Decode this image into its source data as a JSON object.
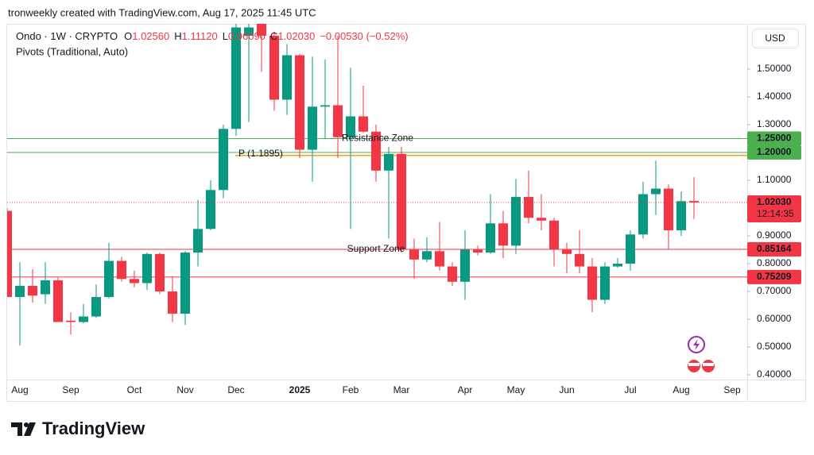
{
  "header": {
    "title": "tronweekly created with TradingView.com, Aug 17, 2025 11:45 UTC"
  },
  "footer": {
    "brand": "TradingView"
  },
  "chart_data": {
    "type": "candlestick",
    "legend": {
      "symbol": "Ondo · 1W · CRYPTO",
      "fields": [
        {
          "key": "O",
          "value": "1.02560"
        },
        {
          "key": "H",
          "value": "1.11120"
        },
        {
          "key": "L",
          "value": "0.96090"
        },
        {
          "key": "C",
          "value": "1.02030"
        }
      ],
      "change": "−0.00530 (−0.52%)",
      "indicator": "Pivots (Traditional, Auto)"
    },
    "currency": "USD",
    "categories": [
      null,
      "Aug",
      null,
      null,
      null,
      "Sep",
      null,
      null,
      null,
      null,
      "Oct",
      null,
      null,
      null,
      "Nov",
      null,
      null,
      null,
      "Dec",
      null,
      null,
      null,
      null,
      "2025",
      null,
      null,
      null,
      "Feb",
      null,
      null,
      null,
      "Mar",
      null,
      null,
      null,
      null,
      "Apr",
      null,
      null,
      null,
      "May",
      null,
      null,
      null,
      "Jun",
      null,
      null,
      null,
      null,
      "Jul",
      null,
      null,
      null,
      "Aug",
      null,
      null,
      null,
      "Sep"
    ],
    "open": [
      0.99,
      0.68,
      0.72,
      0.69,
      0.74,
      0.595,
      0.59,
      0.61,
      0.68,
      0.81,
      0.745,
      0.73,
      0.835,
      0.7,
      0.62,
      0.84,
      0.925,
      1.065,
      1.285,
      1.62,
      1.68,
      1.62,
      1.39,
      1.55,
      1.21,
      1.365,
      1.37,
      1.255,
      1.33,
      1.275,
      1.135,
      1.195,
      0.85,
      0.815,
      0.845,
      0.79,
      0.735,
      0.85,
      0.84,
      0.945,
      0.865,
      1.04,
      0.965,
      0.955,
      0.85,
      0.835,
      0.79,
      0.67,
      0.79,
      0.8,
      0.905,
      1.05,
      1.07,
      0.92,
      1.0256,
      null,
      null,
      null
    ],
    "high": [
      1.0,
      0.805,
      0.78,
      0.805,
      0.75,
      0.625,
      0.655,
      0.725,
      0.875,
      0.825,
      0.775,
      0.84,
      0.84,
      0.755,
      0.845,
      1.03,
      1.1,
      1.3,
      1.7,
      1.7,
      1.72,
      1.635,
      1.59,
      1.555,
      1.545,
      1.535,
      1.62,
      1.505,
      1.44,
      1.3,
      1.22,
      1.22,
      0.89,
      0.895,
      0.95,
      0.805,
      0.92,
      0.865,
      1.05,
      0.99,
      1.105,
      1.135,
      1.05,
      0.965,
      0.875,
      0.92,
      0.82,
      0.805,
      0.82,
      0.92,
      1.095,
      1.17,
      1.085,
      1.06,
      1.1112,
      null,
      null,
      null
    ],
    "low": [
      0.68,
      0.505,
      0.66,
      0.655,
      0.59,
      0.545,
      0.585,
      0.605,
      0.675,
      0.735,
      0.715,
      0.705,
      0.69,
      0.59,
      0.58,
      0.79,
      0.92,
      1.035,
      1.26,
      1.31,
      1.49,
      1.35,
      1.335,
      1.18,
      1.095,
      1.25,
      1.18,
      0.925,
      1.27,
      1.095,
      0.89,
      0.84,
      0.745,
      0.805,
      0.775,
      0.72,
      0.67,
      0.83,
      0.835,
      0.82,
      0.835,
      0.945,
      0.92,
      0.79,
      0.765,
      0.765,
      0.625,
      0.655,
      0.785,
      0.775,
      0.89,
      0.975,
      0.85,
      0.9,
      0.9609,
      null,
      null,
      null
    ],
    "close": [
      0.68,
      0.72,
      0.685,
      0.74,
      0.59,
      0.59,
      0.61,
      0.68,
      0.81,
      0.745,
      0.73,
      0.835,
      0.7,
      0.62,
      0.84,
      0.925,
      1.065,
      1.285,
      1.65,
      1.65,
      1.62,
      1.39,
      1.55,
      1.21,
      1.365,
      1.37,
      1.255,
      1.33,
      1.275,
      1.135,
      1.195,
      0.85,
      0.815,
      0.845,
      0.79,
      0.735,
      0.85,
      0.84,
      0.945,
      0.865,
      1.04,
      0.965,
      0.955,
      0.85,
      0.835,
      0.79,
      0.67,
      0.79,
      0.8,
      0.905,
      1.05,
      1.07,
      0.92,
      1.025,
      1.0203,
      null,
      null,
      null
    ],
    "up_color": "#089981",
    "down_color": "#f23645",
    "ylim": [
      0.383,
      1.663
    ],
    "yticks": [
      {
        "value": 1.5,
        "label": "1.50000"
      },
      {
        "value": 1.4,
        "label": "1.40000"
      },
      {
        "value": 1.3,
        "label": "1.30000"
      },
      {
        "value": 1.2,
        "label": "1.20000"
      },
      {
        "value": 1.1,
        "label": "1.10000"
      },
      {
        "value": 1.0,
        "label": "1.00000"
      },
      {
        "value": 0.9,
        "label": "0.90000"
      },
      {
        "value": 0.8,
        "label": "0.80000"
      },
      {
        "value": 0.7,
        "label": "0.70000"
      },
      {
        "value": 0.6,
        "label": "0.60000"
      },
      {
        "value": 0.5,
        "label": "0.50000"
      },
      {
        "value": 0.4,
        "label": "0.40000"
      }
    ],
    "levels": [
      {
        "name": "Resistance Zone",
        "value": 1.25,
        "label": "1.25000",
        "color": "#4caf50"
      },
      {
        "value": 1.2,
        "label": "1.20000",
        "color": "#4caf50"
      },
      {
        "name": "P (1.1895)",
        "value": 1.1895,
        "color": "#f7a21b"
      },
      {
        "name": "Support Zone",
        "value": 0.85164,
        "label": "0.85164",
        "color": "#f23645"
      },
      {
        "value": 0.75209,
        "label": "0.75209",
        "color": "#f23645"
      }
    ],
    "last_price": {
      "value": 1.0203,
      "label": "1.02030",
      "countdown": "12:14:35",
      "color": "#f23645"
    }
  }
}
